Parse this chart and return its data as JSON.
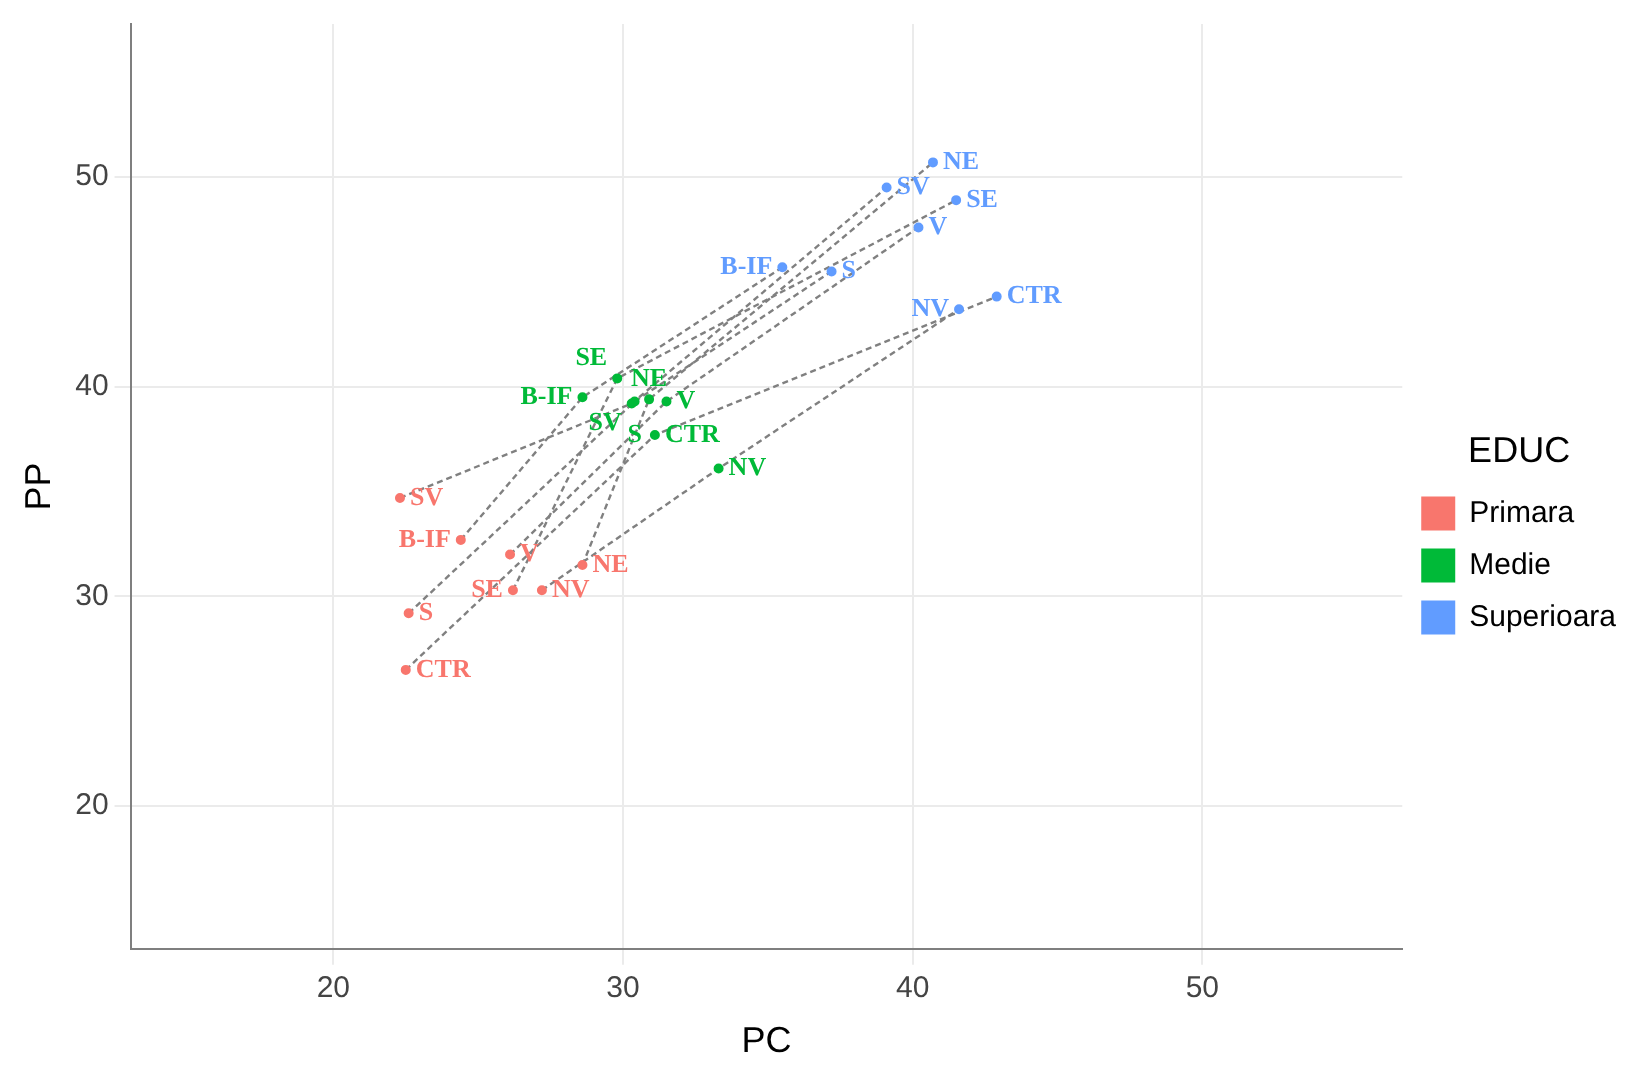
{
  "chart_data": {
    "type": "scatter",
    "xlabel": "PC",
    "ylabel": "PP",
    "legend_title": "EDUC",
    "legend": "right",
    "grid": true,
    "xlim": [
      13,
      56.9
    ],
    "ylim": [
      13.2,
      57.3
    ],
    "xticks": [
      20,
      30,
      40,
      50
    ],
    "yticks": [
      20,
      30,
      40,
      50
    ],
    "series": [
      {
        "type": "line",
        "color": "#808080",
        "line_style": "dashed",
        "x": [
          22.3,
          30.3,
          39.1
        ],
        "values": [
          34.7,
          39.2,
          49.5
        ]
      },
      {
        "type": "line",
        "color": "#808080",
        "line_style": "dashed",
        "x": [
          24.4,
          28.6,
          35.5
        ],
        "values": [
          32.7,
          39.5,
          45.7
        ]
      },
      {
        "type": "line",
        "color": "#808080",
        "line_style": "dashed",
        "x": [
          26.1,
          31.5,
          40.2
        ],
        "values": [
          32.0,
          39.3,
          47.6
        ]
      },
      {
        "type": "line",
        "color": "#808080",
        "line_style": "dashed",
        "x": [
          28.6,
          30.9,
          40.7
        ],
        "values": [
          31.5,
          39.4,
          50.7
        ]
      },
      {
        "type": "line",
        "color": "#808080",
        "line_style": "dashed",
        "x": [
          26.2,
          29.8,
          41.5
        ],
        "values": [
          30.3,
          40.4,
          48.9
        ]
      },
      {
        "type": "line",
        "color": "#808080",
        "line_style": "dashed",
        "x": [
          27.2,
          33.3,
          41.6
        ],
        "values": [
          30.3,
          36.1,
          43.7
        ]
      },
      {
        "type": "line",
        "color": "#808080",
        "line_style": "dashed",
        "x": [
          22.6,
          30.4,
          37.2
        ],
        "values": [
          29.2,
          39.3,
          45.5
        ]
      },
      {
        "type": "line",
        "color": "#808080",
        "line_style": "dashed",
        "x": [
          22.5,
          31.1,
          42.9
        ],
        "values": [
          26.5,
          37.7,
          44.3
        ]
      },
      {
        "name": "Primara",
        "color": "#f8766d",
        "marker": "circle",
        "x": [
          22.3,
          24.4,
          26.1,
          28.6,
          26.2,
          27.2,
          22.6,
          22.5
        ],
        "values": [
          34.7,
          32.7,
          32.0,
          31.5,
          30.3,
          30.3,
          29.2,
          26.5
        ],
        "value_labels": [
          "SV",
          "B-IF",
          "V",
          "NE",
          "SE",
          "NV",
          "S",
          "CTR"
        ]
      },
      {
        "name": "Medie",
        "color": "#00ba38",
        "marker": "circle",
        "x": [
          30.3,
          28.6,
          31.5,
          30.9,
          29.8,
          33.3,
          30.4,
          31.1
        ],
        "values": [
          39.2,
          39.5,
          39.3,
          39.4,
          40.4,
          36.1,
          39.3,
          37.7
        ],
        "value_labels": [
          "SV",
          "B-IF",
          "V",
          "NE",
          "SE",
          "NV",
          "S",
          "CTR"
        ]
      },
      {
        "name": "Superioara",
        "color": "#619cff",
        "marker": "circle",
        "x": [
          39.1,
          35.5,
          40.2,
          40.7,
          41.5,
          41.6,
          37.2,
          42.9
        ],
        "values": [
          49.5,
          45.7,
          47.6,
          50.7,
          48.9,
          43.7,
          45.5,
          44.3
        ],
        "value_labels": [
          "SV",
          "B-IF",
          "V",
          "NE",
          "SE",
          "NV",
          "S",
          "CTR"
        ]
      }
    ]
  }
}
